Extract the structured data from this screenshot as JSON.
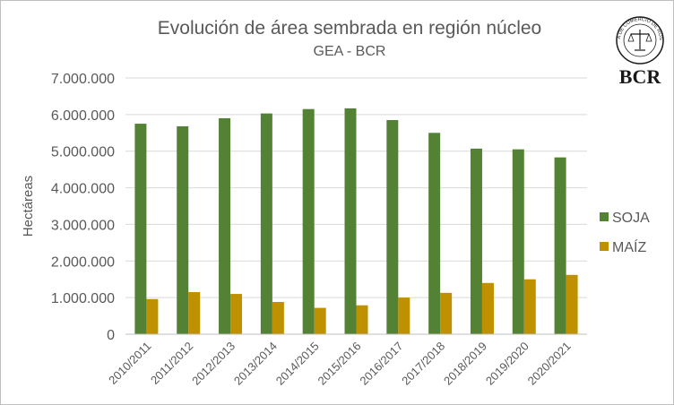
{
  "logo": {
    "name": "BCR",
    "seal_text": "BOLSA DE COMERCIO DE ROSARIO"
  },
  "chart_data": {
    "type": "bar",
    "title": "Evolución de área sembrada en región núcleo",
    "subtitle": "GEA - BCR",
    "xlabel": "",
    "ylabel": "Hectáreas",
    "ylim": [
      0,
      7000000
    ],
    "yticks": [
      {
        "value": 0,
        "label": "0"
      },
      {
        "value": 1000000,
        "label": "1.000.000"
      },
      {
        "value": 2000000,
        "label": "2.000.000"
      },
      {
        "value": 3000000,
        "label": "3.000.000"
      },
      {
        "value": 4000000,
        "label": "4.000.000"
      },
      {
        "value": 5000000,
        "label": "5.000.000"
      },
      {
        "value": 6000000,
        "label": "6.000.000"
      },
      {
        "value": 7000000,
        "label": "7.000.000"
      }
    ],
    "categories": [
      "2010/2011",
      "2011/2012",
      "2012/2013",
      "2013/2014",
      "2014/2015",
      "2015/2016",
      "2016/2017",
      "2017/2018",
      "2018/2019",
      "2019/2020",
      "2020/2021"
    ],
    "series": [
      {
        "name": "SOJA",
        "color": "#548235",
        "values": [
          5750000,
          5680000,
          5900000,
          6030000,
          6150000,
          6170000,
          5850000,
          5500000,
          5070000,
          5050000,
          4830000
        ]
      },
      {
        "name": "MAÍZ",
        "color": "#bf9000",
        "values": [
          960000,
          1150000,
          1100000,
          880000,
          720000,
          790000,
          1000000,
          1130000,
          1400000,
          1500000,
          1620000
        ]
      }
    ],
    "grid": true,
    "legend_position": "right"
  }
}
